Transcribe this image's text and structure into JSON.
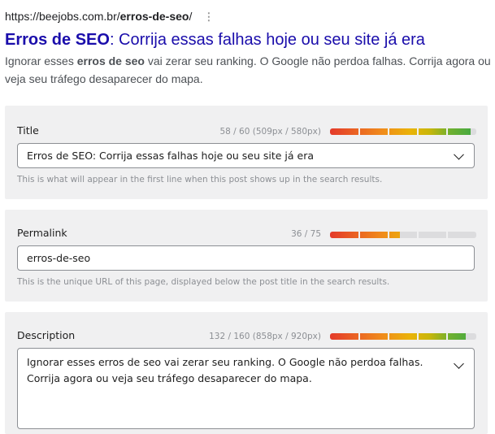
{
  "serp": {
    "url_base": "https://beejobs.com.br/",
    "url_slug": "erros-de-seo",
    "url_end": "/",
    "menu_icon": "more-vert-icon",
    "title_bold": "Erros de SEO",
    "title_rest": ": Corrija essas falhas hoje ou seu site já era",
    "desc_pre": "Ignorar esses ",
    "desc_bold": "erros de seo",
    "desc_post": " vai zerar seu ranking. O Google não perdoa falhas. Corrija agora ou veja seu tráfego desaparecer do mapa."
  },
  "title_field": {
    "label": "Title",
    "count": "58 / 60 (509px / 580px)",
    "progress": 0.96,
    "value": "Erros de SEO: Corrija essas falhas hoje ou seu site já era",
    "help": "This is what will appear in the first line when this post shows up in the search results."
  },
  "permalink_field": {
    "label": "Permalink",
    "count": "36 / 75",
    "progress": 0.48,
    "value": "erros-de-seo",
    "help": "This is the unique URL of this page, displayed below the post title in the search results."
  },
  "description_field": {
    "label": "Description",
    "count": "132 / 160 (858px / 920px)",
    "progress": 0.93,
    "value": "Ignorar esses erros de seo vai zerar seu ranking. O Google não perdoa falhas. Corrija agora ou veja seu tráfego desaparecer do mapa."
  }
}
